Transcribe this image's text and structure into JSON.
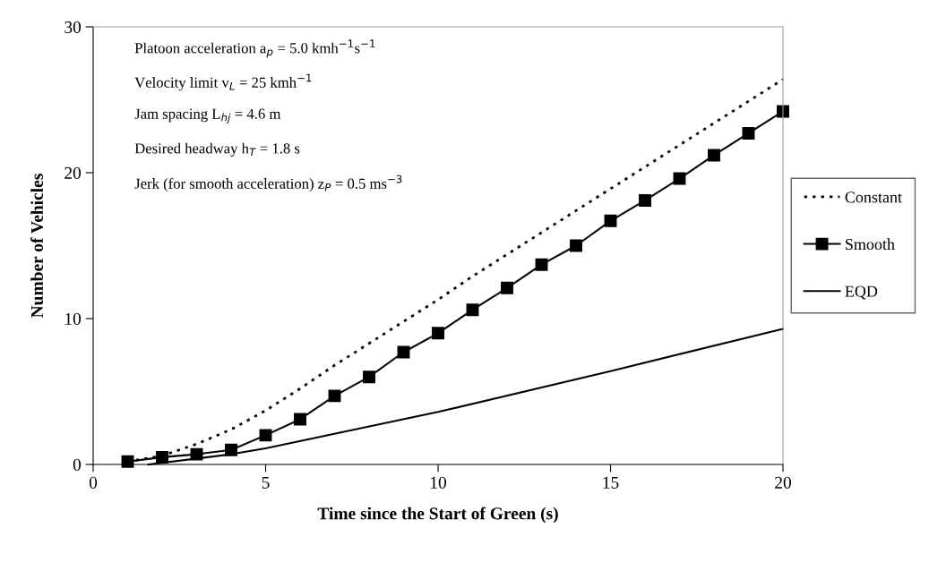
{
  "chart_data": {
    "type": "line",
    "xlabel": "Time since the Start of Green (s)",
    "ylabel": "Number of Vehicles",
    "xlim": [
      0,
      20
    ],
    "xticks": [
      0,
      5,
      10,
      15,
      20
    ],
    "ylim": [
      0,
      30
    ],
    "yticks": [
      0,
      10,
      20,
      30
    ],
    "grid": false,
    "legend": "right",
    "annotations": [
      "Platoon acceleration a$_{p}$ = 5.0 kmh$^{−1}$s$^{−1}$",
      "Velocity limit v$_{L}$ = 25 kmh$^{−1}$",
      "Jam spacing L$_{hj}$ = 4.6 m",
      "Desired headway h$_{T}$ = 1.8 s",
      "Jerk (for smooth acceleration) z$_{P}$ = 0.5 ms$^{−3}$"
    ],
    "series": [
      {
        "name": "Constant",
        "color": "#000000",
        "line_style": "dotted",
        "marker": "none",
        "x": [
          1,
          2,
          3,
          4,
          5,
          6,
          7,
          8,
          9,
          10,
          11,
          12,
          13,
          14,
          15,
          16,
          17,
          18,
          19,
          20
        ],
        "values": [
          0.2,
          0.6,
          1.4,
          2.4,
          3.7,
          5.2,
          6.8,
          8.3,
          9.8,
          11.3,
          12.9,
          14.4,
          15.9,
          17.4,
          18.9,
          20.4,
          21.9,
          23.4,
          24.9,
          26.4
        ]
      },
      {
        "name": "Smooth",
        "color": "#000000",
        "line_style": "solid",
        "marker": "square",
        "x": [
          1,
          2,
          3,
          4,
          5,
          6,
          7,
          8,
          9,
          10,
          11,
          12,
          13,
          14,
          15,
          16,
          17,
          18,
          19,
          20
        ],
        "values": [
          0.2,
          0.5,
          0.7,
          1.0,
          2.0,
          3.1,
          4.7,
          6.0,
          7.7,
          9.0,
          10.6,
          12.1,
          13.7,
          15.0,
          16.7,
          18.1,
          19.6,
          21.2,
          22.7,
          24.2
        ]
      },
      {
        "name": "EQD",
        "color": "#000000",
        "line_style": "solid",
        "marker": "none",
        "x": [
          1.6,
          4,
          5,
          10,
          15,
          20
        ],
        "values": [
          0,
          0.7,
          1.1,
          3.6,
          6.4,
          9.3
        ]
      }
    ]
  }
}
